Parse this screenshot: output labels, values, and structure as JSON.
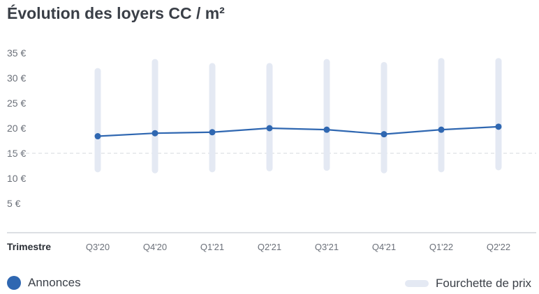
{
  "title": "Évolution des loyers CC / m²",
  "colors": {
    "line": "#2f67b1",
    "range": "#e4e9f3",
    "axis": "#c8ccd2",
    "dashed": "#d5d8dd"
  },
  "chart_data": {
    "type": "line",
    "xlabel": "Trimestre",
    "categories": [
      "Q3'20",
      "Q4'20",
      "Q1'21",
      "Q2'21",
      "Q3'21",
      "Q4'21",
      "Q1'22",
      "Q2'22"
    ],
    "ylim": [
      0,
      35
    ],
    "yticks": [
      {
        "value": 5,
        "label": "5 €"
      },
      {
        "value": 10,
        "label": "10 €"
      },
      {
        "value": 15,
        "label": "15 €"
      },
      {
        "value": 20,
        "label": "20 €"
      },
      {
        "value": 25,
        "label": "25 €"
      },
      {
        "value": 30,
        "label": "30 €"
      },
      {
        "value": 35,
        "label": "35 €"
      }
    ],
    "reference_line": 15,
    "series": [
      {
        "name": "Annonces",
        "values": [
          18.4,
          19.0,
          19.2,
          20.0,
          19.7,
          18.8,
          19.7,
          20.3
        ]
      }
    ],
    "ranges": {
      "name": "Fourchette de prix",
      "low": [
        11.2,
        11.0,
        11.2,
        11.4,
        11.5,
        11.0,
        11.2,
        11.6
      ],
      "high": [
        32.0,
        33.8,
        33.0,
        33.0,
        33.8,
        33.2,
        34.0,
        34.0
      ]
    },
    "grid": false,
    "legend": "bottom"
  },
  "legend": {
    "series_label": "Annonces",
    "range_label": "Fourchette de prix"
  }
}
